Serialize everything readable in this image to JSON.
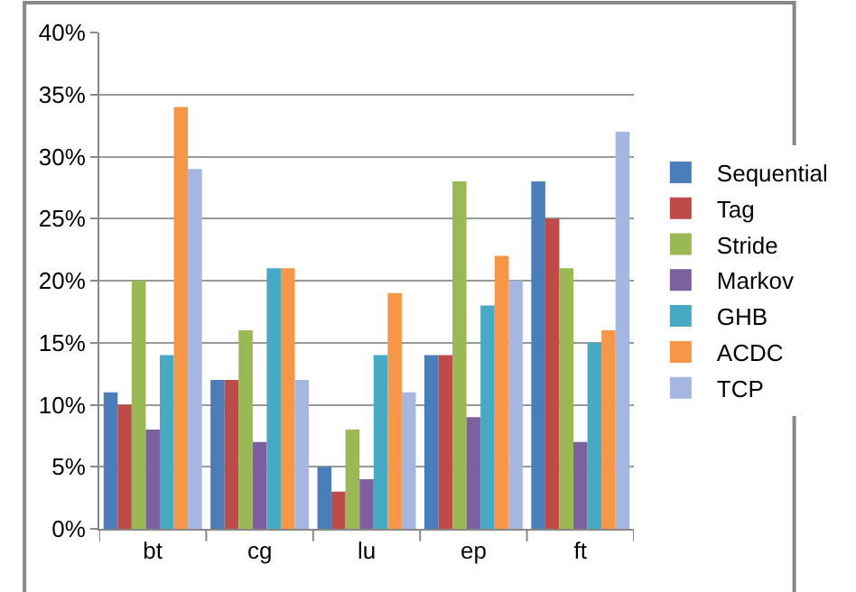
{
  "chart_data": {
    "type": "bar",
    "categories": [
      "bt",
      "cg",
      "lu",
      "ep",
      "ft"
    ],
    "series": [
      {
        "name": "Sequential",
        "color": "#4a7ebb",
        "values": [
          11,
          12,
          5,
          14,
          28
        ]
      },
      {
        "name": "Tag",
        "color": "#be4b48",
        "values": [
          10,
          12,
          3,
          14,
          25
        ]
      },
      {
        "name": "Stride",
        "color": "#98b954",
        "values": [
          20,
          16,
          8,
          28,
          21
        ]
      },
      {
        "name": "Markov",
        "color": "#7d60a0",
        "values": [
          8,
          7,
          4,
          9,
          7
        ]
      },
      {
        "name": "GHB",
        "color": "#46aac5",
        "values": [
          14,
          21,
          14,
          18,
          15
        ]
      },
      {
        "name": "ACDC",
        "color": "#f79646",
        "values": [
          34,
          21,
          19,
          22,
          16
        ]
      },
      {
        "name": "TCP",
        "color": "#a5b6e0",
        "values": [
          29,
          12,
          11,
          20,
          32
        ]
      }
    ],
    "ylim": [
      0,
      40
    ],
    "yticks": [
      {
        "value": 0,
        "label": "0%"
      },
      {
        "value": 5,
        "label": "5%"
      },
      {
        "value": 10,
        "label": "10%"
      },
      {
        "value": 15,
        "label": "15%"
      },
      {
        "value": 20,
        "label": "20%"
      },
      {
        "value": 25,
        "label": "25%"
      },
      {
        "value": 30,
        "label": "30%"
      },
      {
        "value": 35,
        "label": "35%"
      },
      {
        "value": 40,
        "label": "40%"
      }
    ],
    "grid": "y",
    "legend": "right"
  }
}
